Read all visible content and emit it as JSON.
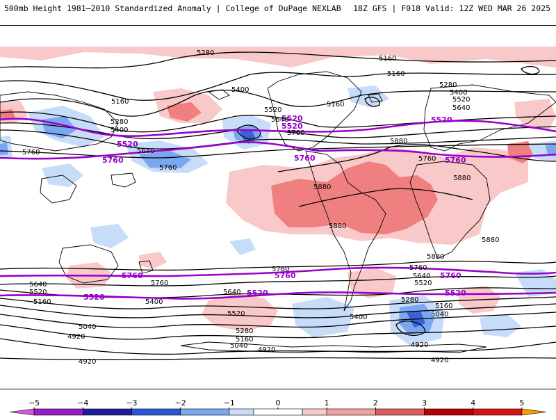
{
  "header": {
    "title": "500mb Height 1981–2010 Standardized Anomaly | College of DuPage NEXLAB",
    "run_info": "18Z GFS | F018 Valid: 12Z WED MAR 26 2025"
  },
  "colors": {
    "purple_contour": "#9a00cc",
    "black_contour": "#000000",
    "anom_pos_light": "#f9c8c8",
    "anom_pos_mid": "#f08080",
    "anom_neg_light": "#c6dcf8",
    "anom_neg_mid": "#7aa7f0",
    "anom_neg_dark": "#3a62d8"
  },
  "colorbar": {
    "ticks": [
      "−5",
      "−4",
      "−3",
      "−2",
      "−1",
      "0",
      "1",
      "2",
      "3",
      "4",
      "5"
    ],
    "segments": [
      {
        "from": -5.5,
        "to": -5,
        "color": "#d05cd8"
      },
      {
        "from": -5,
        "to": -4,
        "color": "#9a1cc8"
      },
      {
        "from": -4,
        "to": -3,
        "color": "#1c1c9c"
      },
      {
        "from": -3,
        "to": -2,
        "color": "#2a55d8"
      },
      {
        "from": -2,
        "to": -1,
        "color": "#7aa7f0"
      },
      {
        "from": -1,
        "to": -0.5,
        "color": "#c6dcf8"
      },
      {
        "from": -0.5,
        "to": 0.5,
        "color": "#ffffff"
      },
      {
        "from": 0.5,
        "to": 1,
        "color": "#f9c8c8"
      },
      {
        "from": 1,
        "to": 2,
        "color": "#f4a0a0"
      },
      {
        "from": 2,
        "to": 3,
        "color": "#e05c5c"
      },
      {
        "from": 3,
        "to": 4,
        "color": "#b80000"
      },
      {
        "from": 4,
        "to": 5,
        "color": "#d81010"
      },
      {
        "from": 5,
        "to": 5.5,
        "color": "#f5a000"
      }
    ]
  },
  "contour_labels": {
    "purple": [
      {
        "text": "5520"
      },
      {
        "text": "5520"
      },
      {
        "text": "5520"
      },
      {
        "text": "5520"
      },
      {
        "text": "5760"
      },
      {
        "text": "5760"
      },
      {
        "text": "5760"
      },
      {
        "text": "5760"
      },
      {
        "text": "5760"
      },
      {
        "text": "5760"
      },
      {
        "text": "5520"
      },
      {
        "text": "5520"
      },
      {
        "text": "5520"
      }
    ],
    "black": [
      {
        "text": "5280"
      },
      {
        "text": "5160"
      },
      {
        "text": "5160"
      },
      {
        "text": "5280"
      },
      {
        "text": "5400"
      },
      {
        "text": "5520"
      },
      {
        "text": "5640"
      },
      {
        "text": "5160"
      },
      {
        "text": "5400"
      },
      {
        "text": "5520"
      },
      {
        "text": "5640"
      },
      {
        "text": "5760"
      },
      {
        "text": "5160"
      },
      {
        "text": "5280"
      },
      {
        "text": "5400"
      },
      {
        "text": "5640"
      },
      {
        "text": "5760"
      },
      {
        "text": "5760"
      },
      {
        "text": "5880"
      },
      {
        "text": "5760"
      },
      {
        "text": "5880"
      },
      {
        "text": "5880"
      },
      {
        "text": "5880"
      },
      {
        "text": "5880"
      },
      {
        "text": "5880"
      },
      {
        "text": "5760"
      },
      {
        "text": "5760"
      },
      {
        "text": "5760"
      },
      {
        "text": "5640"
      },
      {
        "text": "5520"
      },
      {
        "text": "5640"
      },
      {
        "text": "5520"
      },
      {
        "text": "5160"
      },
      {
        "text": "5400"
      },
      {
        "text": "5640"
      },
      {
        "text": "5520"
      },
      {
        "text": "5400"
      },
      {
        "text": "5280"
      },
      {
        "text": "5160"
      },
      {
        "text": "5040"
      },
      {
        "text": "5040"
      },
      {
        "text": "4920"
      },
      {
        "text": "4920"
      },
      {
        "text": "4920"
      },
      {
        "text": "5280"
      },
      {
        "text": "5160"
      },
      {
        "text": "5040"
      },
      {
        "text": "4920"
      },
      {
        "text": "5400"
      }
    ]
  }
}
